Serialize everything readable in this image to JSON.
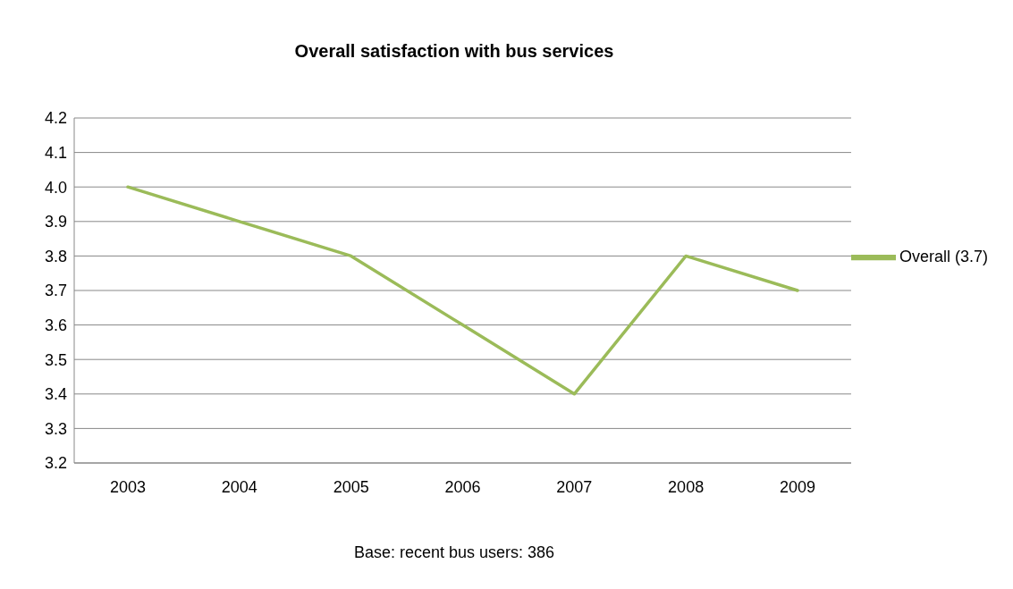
{
  "chart_data": {
    "type": "line",
    "title": "Overall satisfaction with bus services",
    "xlabel": "Base: recent bus users: 386",
    "categories": [
      "2003",
      "2004",
      "2005",
      "2006",
      "2007",
      "2008",
      "2009"
    ],
    "series": [
      {
        "name": "Overall (3.7)",
        "color": "#9bbb59",
        "values": [
          4.0,
          3.9,
          3.8,
          3.6,
          3.4,
          3.8,
          3.7
        ]
      }
    ],
    "ylim": [
      3.2,
      4.2
    ],
    "yticks": [
      3.2,
      3.3,
      3.4,
      3.5,
      3.6,
      3.7,
      3.8,
      3.9,
      {
        "value": 4,
        "label": "4.0"
      },
      4.1,
      4.2
    ],
    "grid": "y",
    "legend": "right",
    "marker": "none",
    "line_style": "solid"
  }
}
